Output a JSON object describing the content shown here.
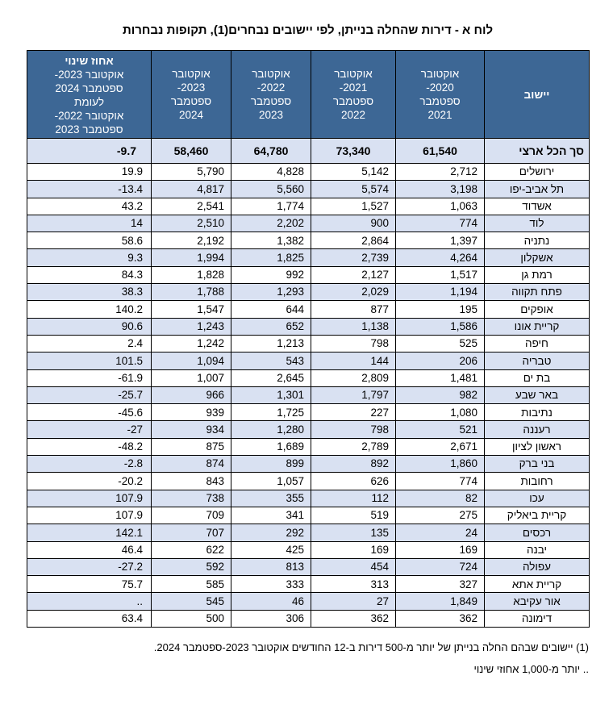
{
  "title": "לוח א - דירות שהחלה בנייתן, לפי יישובים נבחרים(1), תקופות נבחרות",
  "colors": {
    "header_bg": "#3D6795",
    "header_text": "#FFFFFF",
    "stripe": "#D9E1F2",
    "border": "#000000",
    "body_bg": "#FFFFFF",
    "text": "#000000"
  },
  "table": {
    "columns": {
      "city": {
        "label": "יישוב"
      },
      "y2021": {
        "lines": "אוקטובר\n2020-\nספטמבר\n2021"
      },
      "y2022": {
        "lines": "אוקטובר\n2021-\nספטמבר\n2022"
      },
      "y2023": {
        "lines": "אוקטובר\n2022-\nספטמבר\n2023"
      },
      "y2024": {
        "lines": "אוקטובר\n2023-\nספטמבר\n2024"
      },
      "pct": {
        "title": "אחוז שינוי",
        "lines": "אוקטובר 2023-\nספטמבר 2024\nלעומת\nאוקטובר 2022-\nספטמבר 2023"
      }
    },
    "total_row": {
      "city": "סך הכל ארצי",
      "y2021": "61,540",
      "y2022": "73,340",
      "y2023": "64,780",
      "y2024": "58,460",
      "pct": "-9.7"
    },
    "rows": [
      {
        "city": "ירושלים",
        "y2021": "2,712",
        "y2022": "5,142",
        "y2023": "4,828",
        "y2024": "5,790",
        "pct": "19.9"
      },
      {
        "city": "תל אביב-יפו",
        "y2021": "3,198",
        "y2022": "5,574",
        "y2023": "5,560",
        "y2024": "4,817",
        "pct": "-13.4"
      },
      {
        "city": "אשדוד",
        "y2021": "1,063",
        "y2022": "1,527",
        "y2023": "1,774",
        "y2024": "2,541",
        "pct": "43.2"
      },
      {
        "city": "לוד",
        "y2021": "774",
        "y2022": "900",
        "y2023": "2,202",
        "y2024": "2,510",
        "pct": "14"
      },
      {
        "city": "נתניה",
        "y2021": "1,397",
        "y2022": "2,864",
        "y2023": "1,382",
        "y2024": "2,192",
        "pct": "58.6"
      },
      {
        "city": "אשקלון",
        "y2021": "4,264",
        "y2022": "2,739",
        "y2023": "1,825",
        "y2024": "1,994",
        "pct": "9.3"
      },
      {
        "city": "רמת גן",
        "y2021": "1,517",
        "y2022": "2,127",
        "y2023": "992",
        "y2024": "1,828",
        "pct": "84.3"
      },
      {
        "city": "פתח תקווה",
        "y2021": "1,194",
        "y2022": "2,029",
        "y2023": "1,293",
        "y2024": "1,788",
        "pct": "38.3"
      },
      {
        "city": "אופקים",
        "y2021": "195",
        "y2022": "877",
        "y2023": "644",
        "y2024": "1,547",
        "pct": "140.2"
      },
      {
        "city": "קריית אונו",
        "y2021": "1,586",
        "y2022": "1,138",
        "y2023": "652",
        "y2024": "1,243",
        "pct": "90.6"
      },
      {
        "city": "חיפה",
        "y2021": "525",
        "y2022": "798",
        "y2023": "1,213",
        "y2024": "1,242",
        "pct": "2.4"
      },
      {
        "city": "טבריה",
        "y2021": "206",
        "y2022": "144",
        "y2023": "543",
        "y2024": "1,094",
        "pct": "101.5"
      },
      {
        "city": "בת ים",
        "y2021": "1,481",
        "y2022": "2,809",
        "y2023": "2,645",
        "y2024": "1,007",
        "pct": "-61.9"
      },
      {
        "city": "באר שבע",
        "y2021": "982",
        "y2022": "1,797",
        "y2023": "1,301",
        "y2024": "966",
        "pct": "-25.7"
      },
      {
        "city": "נתיבות",
        "y2021": "1,080",
        "y2022": "227",
        "y2023": "1,725",
        "y2024": "939",
        "pct": "-45.6"
      },
      {
        "city": "רעננה",
        "y2021": "521",
        "y2022": "798",
        "y2023": "1,280",
        "y2024": "934",
        "pct": "-27"
      },
      {
        "city": "ראשון לציון",
        "y2021": "2,671",
        "y2022": "2,789",
        "y2023": "1,689",
        "y2024": "875",
        "pct": "-48.2"
      },
      {
        "city": "בני ברק",
        "y2021": "1,860",
        "y2022": "892",
        "y2023": "899",
        "y2024": "874",
        "pct": "-2.8"
      },
      {
        "city": "רחובות",
        "y2021": "774",
        "y2022": "626",
        "y2023": "1,057",
        "y2024": "843",
        "pct": "-20.2"
      },
      {
        "city": "עכו",
        "y2021": "82",
        "y2022": "112",
        "y2023": "355",
        "y2024": "738",
        "pct": "107.9"
      },
      {
        "city": "קריית ביאליק",
        "y2021": "275",
        "y2022": "519",
        "y2023": "341",
        "y2024": "709",
        "pct": "107.9"
      },
      {
        "city": "רכסים",
        "y2021": "24",
        "y2022": "135",
        "y2023": "292",
        "y2024": "707",
        "pct": "142.1"
      },
      {
        "city": "יבנה",
        "y2021": "169",
        "y2022": "169",
        "y2023": "425",
        "y2024": "622",
        "pct": "46.4"
      },
      {
        "city": "עפולה",
        "y2021": "724",
        "y2022": "454",
        "y2023": "813",
        "y2024": "592",
        "pct": "-27.2"
      },
      {
        "city": "קריית אתא",
        "y2021": "327",
        "y2022": "313",
        "y2023": "333",
        "y2024": "585",
        "pct": "75.7"
      },
      {
        "city": "אור עקיבא",
        "y2021": "1,849",
        "y2022": "27",
        "y2023": "46",
        "y2024": "545",
        "pct": ".."
      },
      {
        "city": "דימונה",
        "y2021": "362",
        "y2022": "362",
        "y2023": "306",
        "y2024": "500",
        "pct": "63.4"
      }
    ]
  },
  "footnotes": [
    "(1) יישובים שבהם החלה בנייתן של יותר מ-500 דירות ב-12 החודשים אוקטובר 2023-ספטמבר 2024.",
    ".. יותר מ-1,000 אחוזי שינוי"
  ]
}
